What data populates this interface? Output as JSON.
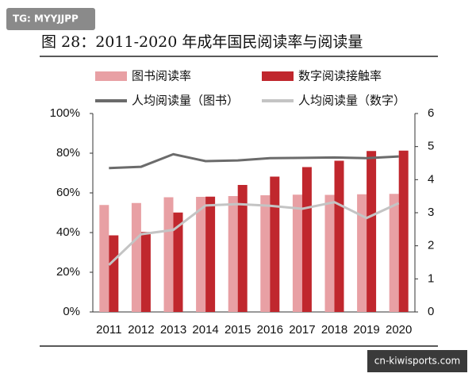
{
  "chart_data": {
    "type": "bar",
    "title": "图 28：2011-2020 年成年国民阅读率与阅读量",
    "categories": [
      "2011",
      "2012",
      "2013",
      "2014",
      "2015",
      "2016",
      "2017",
      "2018",
      "2019",
      "2020"
    ],
    "series": [
      {
        "name": "图书阅读率",
        "type": "bar",
        "color": "#e8a0a4",
        "values": [
          53.9,
          54.9,
          57.8,
          58.0,
          58.4,
          58.8,
          59.1,
          59.0,
          59.3,
          59.5
        ]
      },
      {
        "name": "数字阅读接触率",
        "type": "bar",
        "color": "#c0272d",
        "values": [
          38.6,
          40.3,
          50.1,
          58.1,
          64.0,
          68.2,
          73.0,
          76.2,
          81.1,
          81.3
        ]
      },
      {
        "name": "人均阅读量（图书）",
        "type": "line",
        "axis": "y2",
        "color": "#6b6b6b",
        "values": [
          4.35,
          4.39,
          4.77,
          4.56,
          4.58,
          4.65,
          4.66,
          4.67,
          4.65,
          4.7
        ]
      },
      {
        "name": "人均阅读量（数字）",
        "type": "line",
        "axis": "y2",
        "color": "#c4c4c4",
        "values": [
          1.42,
          2.35,
          2.48,
          3.22,
          3.26,
          3.21,
          3.12,
          3.32,
          2.84,
          3.29
        ]
      }
    ],
    "ylim": [
      0,
      100
    ],
    "yticks": [
      {
        "value": 0,
        "label": "0%"
      },
      {
        "value": 20,
        "label": "20%"
      },
      {
        "value": 40,
        "label": "40%"
      },
      {
        "value": 60,
        "label": "60%"
      },
      {
        "value": 80,
        "label": "80%"
      },
      {
        "value": 100,
        "label": "100%"
      }
    ],
    "y2lim": [
      0,
      6
    ],
    "y2ticks": [
      0,
      1,
      2,
      3,
      4,
      5,
      6
    ],
    "grid": false
  },
  "watermarks": [
    "TG: MYYJJPP",
    "cn-kiwisports.com"
  ]
}
